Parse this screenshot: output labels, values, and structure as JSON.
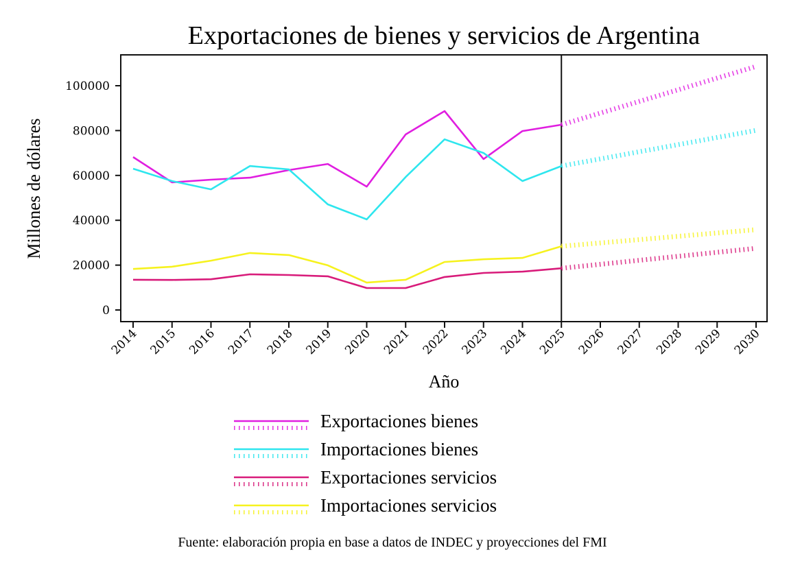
{
  "chart_data": {
    "type": "line",
    "title": "Exportaciones de bienes y servicios de Argentina",
    "xlabel": "Año",
    "ylabel": "Millones de dólares",
    "source": "Fuente: elaboración propia en base a datos de INDEC y proyecciones del FMI",
    "x": [
      2014,
      2015,
      2016,
      2017,
      2018,
      2019,
      2020,
      2021,
      2022,
      2023,
      2024,
      2025,
      2026,
      2027,
      2028,
      2029,
      2030
    ],
    "xticks": [
      "2014",
      "2015",
      "2016",
      "2017",
      "2018",
      "2019",
      "2020",
      "2021",
      "2022",
      "2023",
      "2024",
      "2025",
      "2026",
      "2027",
      "2028",
      "2029",
      "2030"
    ],
    "yticks": [
      "0",
      "20000",
      "40000",
      "60000",
      "80000",
      "100000"
    ],
    "ytick_values": [
      0,
      20000,
      40000,
      60000,
      80000,
      100000
    ],
    "ylim": [
      -5000,
      113000
    ],
    "xlim": [
      2013.7,
      2030.3
    ],
    "forecast_start": 2025,
    "grid": false,
    "legend_position": "bottom",
    "series": [
      {
        "name": "Exportaciones bienes",
        "color": "#e01ee0",
        "historical": {
          "x": [
            2014,
            2015,
            2016,
            2017,
            2018,
            2019,
            2020,
            2021,
            2022,
            2023,
            2024,
            2025
          ],
          "values": [
            68200,
            56900,
            58100,
            59000,
            62400,
            65100,
            55000,
            78300,
            88700,
            67300,
            79800,
            82600
          ]
        },
        "forecast": {
          "x": [
            2025,
            2030
          ],
          "values": [
            82600,
            108600
          ]
        }
      },
      {
        "name": "Importaciones bienes",
        "color": "#2ee6ee",
        "historical": {
          "x": [
            2014,
            2015,
            2016,
            2017,
            2018,
            2019,
            2020,
            2021,
            2022,
            2023,
            2024,
            2025
          ],
          "values": [
            63000,
            57500,
            53800,
            64200,
            62700,
            47100,
            40400,
            59300,
            76100,
            70000,
            57500,
            64200
          ]
        },
        "forecast": {
          "x": [
            2025,
            2030
          ],
          "values": [
            64200,
            80100
          ]
        }
      },
      {
        "name": "Exportaciones servicios",
        "color": "#d81b7a",
        "historical": {
          "x": [
            2014,
            2015,
            2016,
            2017,
            2018,
            2019,
            2020,
            2021,
            2022,
            2023,
            2024,
            2025
          ],
          "values": [
            13500,
            13400,
            13700,
            15900,
            15600,
            15000,
            9800,
            9800,
            14700,
            16500,
            17100,
            18600
          ]
        },
        "forecast": {
          "x": [
            2025,
            2030
          ],
          "values": [
            18600,
            27500
          ]
        }
      },
      {
        "name": "Importaciones servicios",
        "color": "#f6f21e",
        "historical": {
          "x": [
            2014,
            2015,
            2016,
            2017,
            2018,
            2019,
            2020,
            2021,
            2022,
            2023,
            2024,
            2025
          ],
          "values": [
            18300,
            19300,
            22000,
            25400,
            24500,
            19900,
            12200,
            13500,
            21400,
            22600,
            23200,
            28400
          ]
        },
        "forecast": {
          "x": [
            2025,
            2030
          ],
          "values": [
            28400,
            35800
          ]
        }
      }
    ]
  }
}
